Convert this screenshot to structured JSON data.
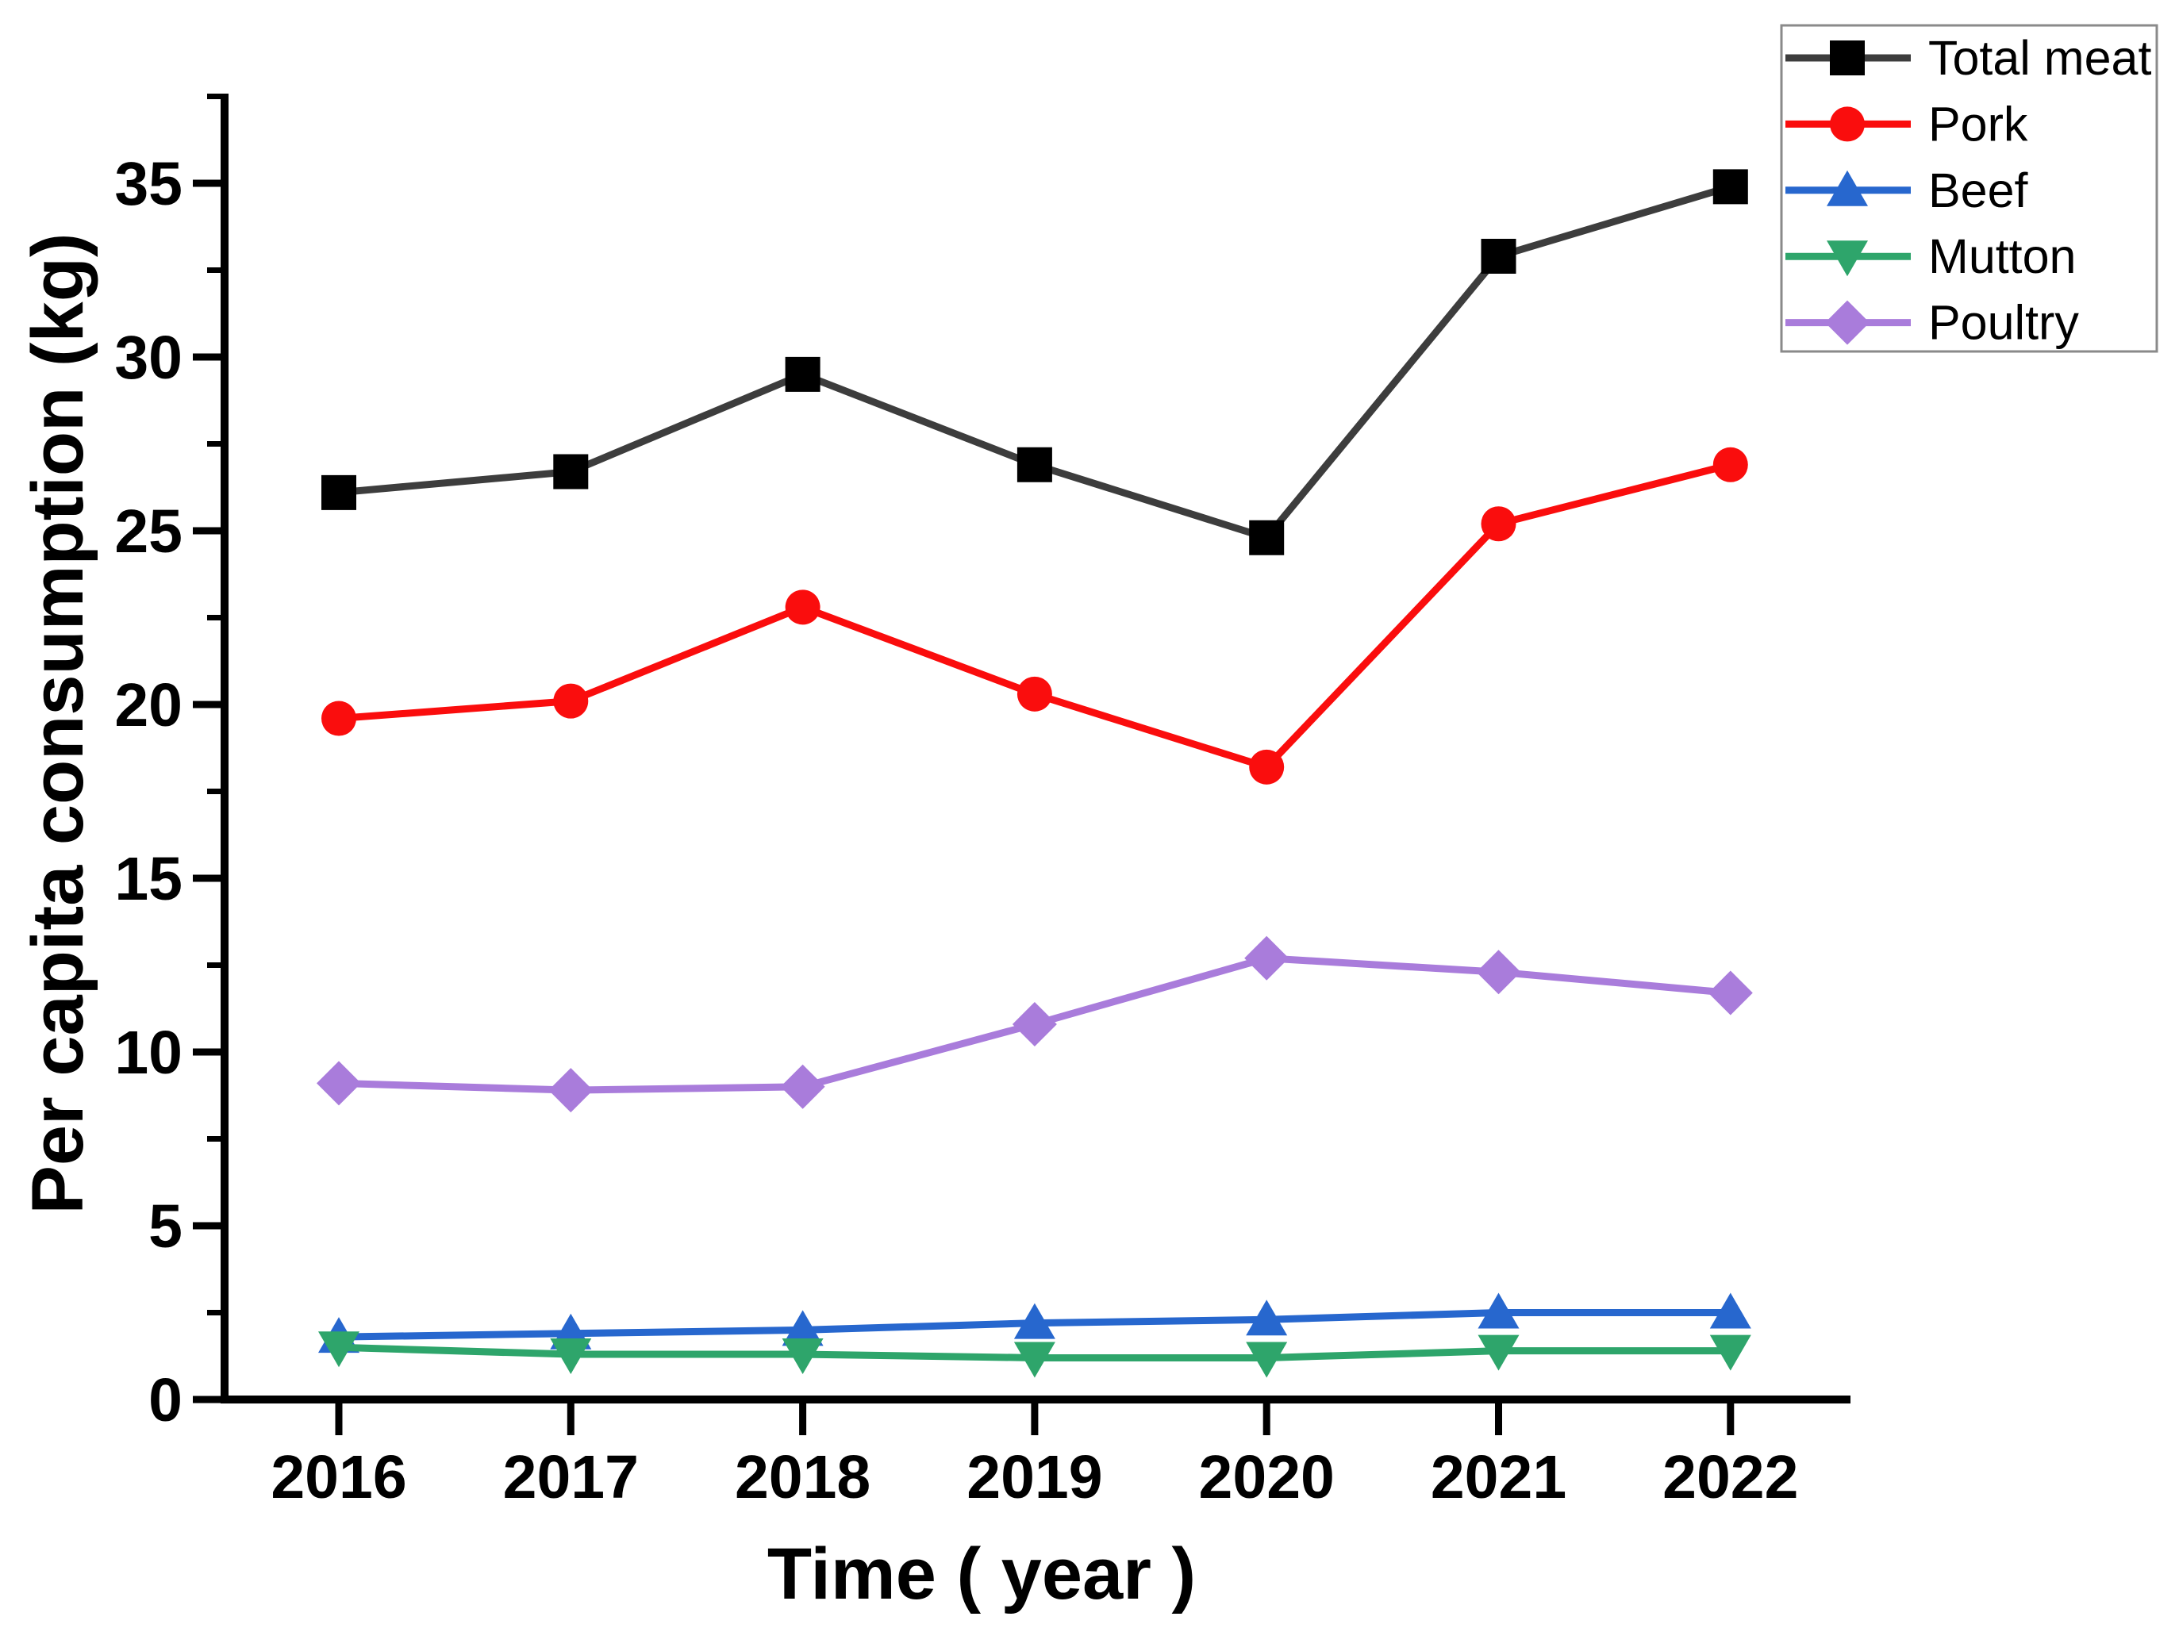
{
  "figure": {
    "background": "#ffffff",
    "axis_color": "#000000",
    "legend_border_color": "#8a8a8a"
  },
  "chart_data": {
    "type": "line",
    "title": "",
    "xlabel": "Time ( year )",
    "ylabel": "Per capita consumption (kg)",
    "x": [
      2016,
      2017,
      2018,
      2019,
      2020,
      2021,
      2022
    ],
    "x_tick_labels": [
      "2016",
      "2017",
      "2018",
      "2019",
      "2020",
      "2021",
      "2022"
    ],
    "y_tick_labels": [
      "0",
      "5",
      "10",
      "15",
      "20",
      "25",
      "30",
      "35"
    ],
    "yticks_major": [
      0,
      5,
      10,
      15,
      20,
      25,
      30,
      35
    ],
    "ytick_minor_step": 2.5,
    "ylim": [
      0,
      37.6
    ],
    "grid": false,
    "legend_position": "top-right",
    "series": [
      {
        "name": "Total meat",
        "marker": "square",
        "line_color": "#3d3d3d",
        "marker_color": "#000000",
        "values": [
          26.1,
          26.7,
          29.5,
          26.9,
          24.8,
          32.9,
          34.9
        ]
      },
      {
        "name": "Pork",
        "marker": "circle",
        "line_color": "#fa0d0d",
        "marker_color": "#fa0d0d",
        "values": [
          19.6,
          20.1,
          22.8,
          20.3,
          18.2,
          25.2,
          26.9
        ]
      },
      {
        "name": "Beef",
        "marker": "triangle-up",
        "line_color": "#2767ce",
        "marker_color": "#2767ce",
        "values": [
          1.8,
          1.9,
          2.0,
          2.2,
          2.3,
          2.5,
          2.5
        ]
      },
      {
        "name": "Mutton",
        "marker": "triangle-down",
        "line_color": "#2ea56b",
        "marker_color": "#2ea56b",
        "values": [
          1.5,
          1.3,
          1.3,
          1.2,
          1.2,
          1.4,
          1.4
        ]
      },
      {
        "name": "Poultry",
        "marker": "diamond",
        "line_color": "#a97cdb",
        "marker_color": "#a97cdb",
        "values": [
          9.1,
          8.9,
          9.0,
          10.8,
          12.7,
          12.3,
          11.7
        ]
      }
    ]
  }
}
